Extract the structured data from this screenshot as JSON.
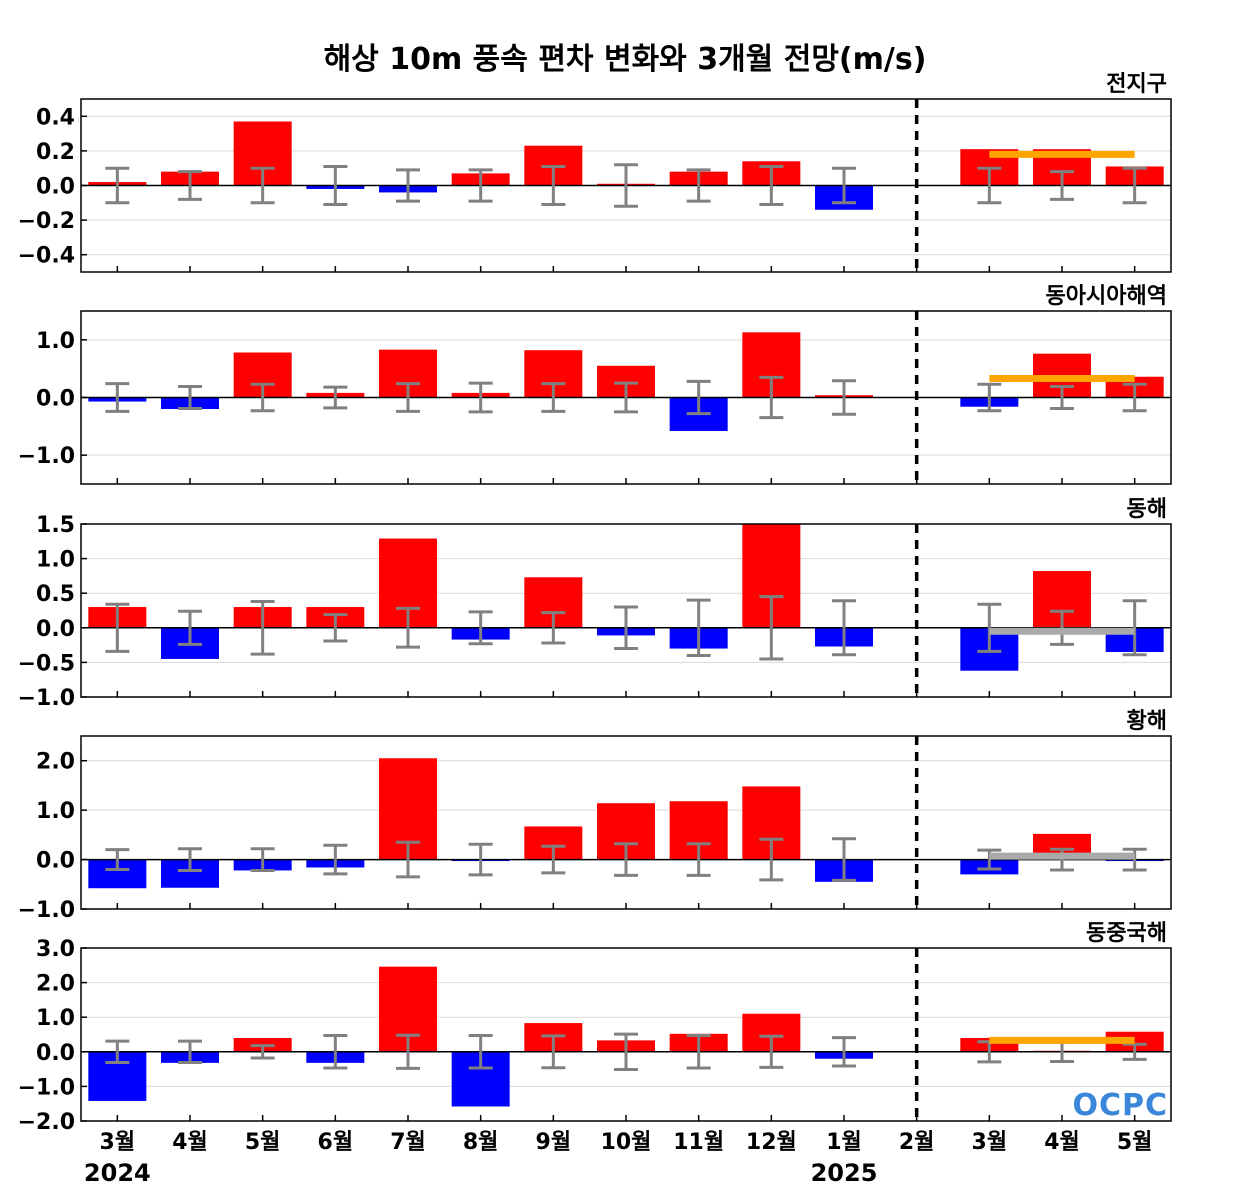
{
  "title": "해상 10m 풍속 편차 변화와 3개월 전망(m/s)",
  "logo_text": "OCPC",
  "colors": {
    "positive": "#ff0000",
    "negative": "#0000ff",
    "error_bar": "#808080",
    "outlook_warm": "#ffa500",
    "outlook_neutral": "#aaaaaa",
    "divider": "#000000",
    "grid": "#d9d9d9"
  },
  "chart_data": {
    "type": "bar",
    "categories": [
      "3월",
      "4월",
      "5월",
      "6월",
      "7월",
      "8월",
      "9월",
      "10월",
      "11월",
      "12월",
      "1월",
      "2월",
      "3월",
      "4월",
      "5월"
    ],
    "year_labels": [
      {
        "label": "2024",
        "category_index": 0
      },
      {
        "label": "2025",
        "category_index": 10
      }
    ],
    "outlook_divider_after_index": 11,
    "panels": [
      {
        "title": "전지구",
        "ylim": [
          -0.5,
          0.5
        ],
        "yticks": [
          0.4,
          0.2,
          0.0,
          -0.2,
          -0.4
        ],
        "ytick_labels": [
          "0.4",
          "0.2",
          "0.0",
          "−0.2",
          "−0.4"
        ],
        "values": [
          0.02,
          0.08,
          0.37,
          -0.02,
          -0.04,
          0.07,
          0.23,
          0.01,
          0.08,
          0.14,
          -0.14,
          0.0,
          0.21,
          0.21,
          0.11
        ],
        "errors": [
          0.1,
          0.08,
          0.1,
          0.11,
          0.09,
          0.09,
          0.11,
          0.12,
          0.09,
          0.11,
          0.1,
          null,
          0.1,
          0.08,
          0.1
        ],
        "outlook_line": {
          "value": 0.18,
          "from_index": 12,
          "to_index": 14,
          "color": "#ffa500"
        }
      },
      {
        "title": "동아시아해역",
        "ylim": [
          -1.5,
          1.5
        ],
        "yticks": [
          1.0,
          0.0,
          -1.0
        ],
        "ytick_labels": [
          "1.0",
          "0.0",
          "−1.0"
        ],
        "values": [
          -0.07,
          -0.2,
          0.78,
          0.08,
          0.83,
          0.08,
          0.82,
          0.55,
          -0.58,
          1.13,
          0.04,
          0.0,
          -0.16,
          0.76,
          0.36
        ],
        "errors": [
          0.24,
          0.19,
          0.23,
          0.18,
          0.24,
          0.25,
          0.24,
          0.25,
          0.28,
          0.35,
          0.29,
          null,
          0.23,
          0.19,
          0.23
        ],
        "outlook_line": {
          "value": 0.33,
          "from_index": 12,
          "to_index": 14,
          "color": "#ffa500"
        }
      },
      {
        "title": "동해",
        "ylim": [
          -1.0,
          1.5
        ],
        "yticks": [
          1.5,
          1.0,
          0.5,
          0.0,
          -0.5,
          -1.0
        ],
        "ytick_labels": [
          "1.5",
          "1.0",
          "0.5",
          "0.0",
          "−0.5",
          "−1.0"
        ],
        "values": [
          0.3,
          -0.45,
          0.3,
          0.3,
          1.29,
          -0.17,
          0.73,
          -0.11,
          -0.3,
          1.5,
          -0.27,
          0.0,
          -0.62,
          0.82,
          -0.35
        ],
        "errors": [
          0.34,
          0.24,
          0.38,
          0.19,
          0.28,
          0.23,
          0.22,
          0.3,
          0.4,
          0.45,
          0.39,
          null,
          0.34,
          0.24,
          0.39
        ],
        "outlook_line": {
          "value": -0.05,
          "from_index": 12,
          "to_index": 14,
          "color": "#aaaaaa"
        }
      },
      {
        "title": "황해",
        "ylim": [
          -1.0,
          2.5
        ],
        "yticks": [
          2.0,
          1.0,
          0.0,
          -1.0
        ],
        "ytick_labels": [
          "2.0",
          "1.0",
          "0.0",
          "−1.0"
        ],
        "values": [
          -0.58,
          -0.57,
          -0.22,
          -0.16,
          2.05,
          -0.03,
          0.67,
          1.14,
          1.18,
          1.48,
          -0.45,
          0.0,
          -0.3,
          0.52,
          -0.03
        ],
        "errors": [
          0.2,
          0.22,
          0.22,
          0.29,
          0.35,
          0.31,
          0.27,
          0.32,
          0.32,
          0.41,
          0.42,
          null,
          0.19,
          0.21,
          0.21
        ],
        "outlook_line": {
          "value": 0.07,
          "from_index": 12,
          "to_index": 14,
          "color": "#aaaaaa"
        }
      },
      {
        "title": "동중국해",
        "ylim": [
          -2.0,
          3.0
        ],
        "yticks": [
          3.0,
          2.0,
          1.0,
          0.0,
          -1.0,
          -2.0
        ],
        "ytick_labels": [
          "3.0",
          "2.0",
          "1.0",
          "0.0",
          "−1.0",
          "−2.0"
        ],
        "values": [
          -1.42,
          -0.32,
          0.4,
          -0.32,
          2.46,
          -1.58,
          0.83,
          0.33,
          0.52,
          1.1,
          -0.2,
          0.0,
          0.4,
          0.03,
          0.58
        ],
        "errors": [
          0.31,
          0.31,
          0.18,
          0.47,
          0.48,
          0.47,
          0.46,
          0.51,
          0.47,
          0.45,
          0.41,
          null,
          0.29,
          0.28,
          0.22
        ],
        "outlook_line": {
          "value": 0.33,
          "from_index": 12,
          "to_index": 14,
          "color": "#ffa500"
        }
      }
    ]
  }
}
